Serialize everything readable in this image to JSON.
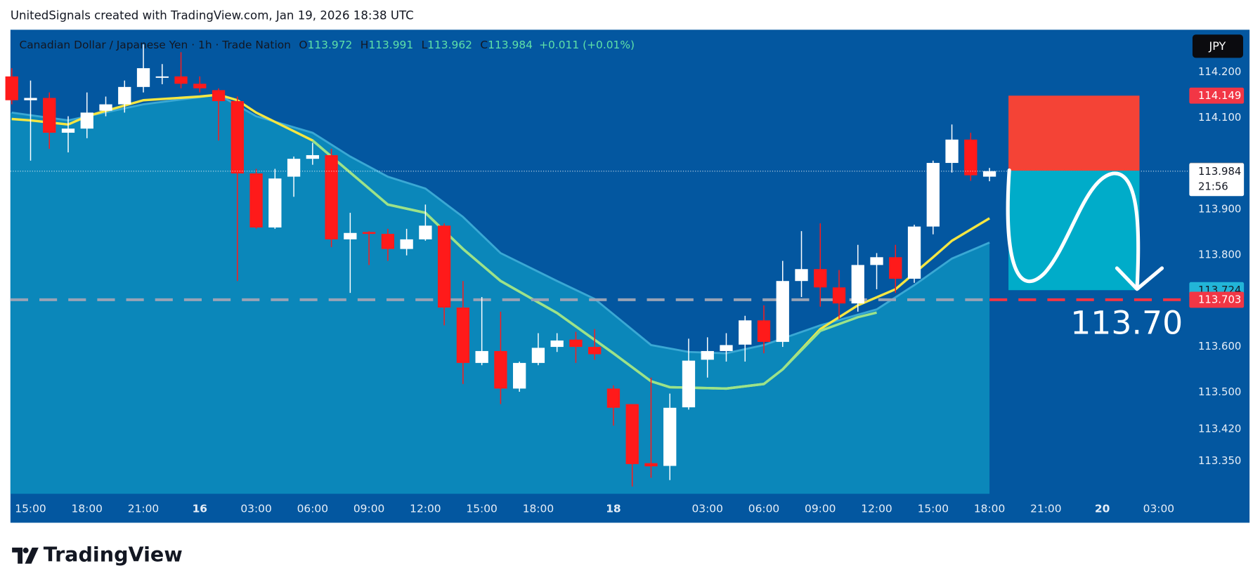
{
  "header": {
    "attribution": "UnitedSignals created with TradingView.com, Jan 19, 2026 18:38 UTC"
  },
  "brand": "TradingView",
  "chart_data": {
    "type": "candlestick",
    "symbol": "Canadian Dollar / Japanese Yen · 1h · Trade Nation",
    "ohlc_letters": [
      "O",
      "H",
      "L",
      "C"
    ],
    "change": "+0.011 (+0.01%)",
    "currency": "JPY",
    "countdown": "21:56",
    "up_color": "#ffffff",
    "down_color": "#ff1a1a",
    "x": [
      0,
      1,
      2,
      3,
      4,
      5,
      6,
      7,
      8,
      9,
      10,
      11,
      12,
      13,
      14,
      15,
      16,
      17,
      18,
      19,
      20,
      21,
      22,
      23,
      24,
      25,
      26,
      27,
      28,
      29,
      30,
      31,
      32,
      33,
      34,
      35,
      36,
      37,
      38,
      39,
      40,
      41,
      42,
      43,
      44,
      45,
      46,
      47,
      48,
      49,
      50,
      51,
      52
    ],
    "open": [
      114.191,
      114.139,
      114.144,
      114.068,
      114.077,
      114.116,
      114.13,
      114.168,
      114.188,
      114.191,
      114.175,
      114.161,
      114.137,
      113.979,
      113.861,
      113.972,
      114.011,
      114.019,
      113.835,
      113.851,
      113.847,
      113.814,
      113.835,
      113.865,
      113.686,
      113.565,
      113.591,
      113.509,
      113.565,
      113.6,
      113.616,
      113.6,
      113.509,
      113.475,
      113.346,
      113.34,
      113.468,
      113.572,
      113.591,
      113.605,
      113.658,
      113.611,
      113.744,
      113.77,
      113.73,
      113.695,
      113.779,
      113.796,
      113.749,
      113.863,
      114.002,
      114.053,
      113.972
    ],
    "high": [
      114.209,
      114.182,
      114.156,
      114.104,
      114.156,
      114.147,
      114.182,
      114.261,
      114.218,
      114.244,
      114.191,
      114.165,
      114.147,
      113.989,
      113.989,
      114.016,
      114.046,
      114.033,
      113.893,
      113.853,
      113.858,
      113.858,
      113.911,
      113.87,
      113.744,
      113.709,
      113.677,
      113.568,
      113.63,
      113.63,
      113.633,
      113.639,
      113.516,
      113.475,
      113.533,
      113.498,
      113.618,
      113.621,
      113.63,
      113.668,
      113.691,
      113.788,
      113.853,
      113.87,
      113.768,
      113.823,
      113.805,
      113.823,
      113.867,
      114.007,
      114.086,
      114.068,
      113.991
    ],
    "low": [
      114.13,
      114.007,
      114.033,
      114.025,
      114.056,
      114.104,
      114.112,
      114.156,
      114.174,
      114.165,
      114.156,
      114.051,
      113.744,
      113.858,
      113.858,
      113.928,
      113.998,
      113.818,
      113.718,
      113.779,
      113.788,
      113.8,
      113.832,
      113.647,
      113.519,
      113.56,
      113.475,
      113.502,
      113.56,
      113.589,
      113.565,
      113.572,
      113.428,
      113.295,
      113.314,
      113.309,
      113.463,
      113.533,
      113.568,
      113.568,
      113.586,
      113.6,
      113.709,
      113.688,
      113.66,
      113.677,
      113.726,
      113.718,
      113.74,
      113.846,
      113.981,
      113.963,
      113.962
    ],
    "close": [
      114.139,
      114.144,
      114.068,
      114.077,
      114.112,
      114.13,
      114.168,
      114.209,
      114.191,
      114.175,
      114.165,
      114.137,
      113.979,
      113.861,
      113.968,
      114.011,
      114.019,
      113.835,
      113.849,
      113.847,
      113.814,
      113.835,
      113.865,
      113.686,
      113.565,
      113.591,
      113.509,
      113.565,
      113.598,
      113.614,
      113.6,
      113.584,
      113.467,
      113.344,
      113.339,
      113.467,
      113.57,
      113.591,
      113.604,
      113.658,
      113.611,
      113.744,
      113.77,
      113.73,
      113.695,
      113.779,
      113.796,
      113.749,
      113.863,
      114.002,
      114.053,
      113.975,
      113.984
    ],
    "band": {
      "color": "#0b87ba",
      "edge": "#3aa8d4",
      "x": [
        0,
        3,
        7,
        11,
        13,
        16,
        18,
        20,
        22,
        24,
        26,
        29,
        31,
        34,
        36,
        38,
        40,
        43,
        46,
        48,
        50,
        52
      ],
      "values": [
        114.112,
        114.095,
        114.13,
        114.151,
        114.104,
        114.068,
        114.016,
        113.972,
        113.946,
        113.884,
        113.805,
        113.744,
        113.705,
        113.604,
        113.589,
        113.586,
        113.604,
        113.647,
        113.682,
        113.735,
        113.793,
        113.828
      ]
    },
    "overlays": [
      {
        "color": "#f5e642",
        "x": [
          0,
          1,
          3,
          4,
          7,
          10,
          11,
          12,
          13,
          16,
          17,
          18,
          20,
          22,
          24,
          26,
          29,
          32,
          34,
          35,
          38,
          40,
          41,
          43,
          45,
          47,
          49,
          50,
          52
        ],
        "values": [
          114.098,
          114.095,
          114.086,
          114.104,
          114.139,
          114.147,
          114.151,
          114.139,
          114.112,
          114.051,
          114.016,
          113.981,
          113.911,
          113.893,
          113.814,
          113.744,
          113.674,
          113.586,
          113.525,
          113.512,
          113.509,
          113.519,
          113.551,
          113.639,
          113.691,
          113.726,
          113.796,
          113.832,
          113.881
        ]
      },
      {
        "color": "#9be38a",
        "x": [
          16,
          17,
          18,
          20,
          22,
          24,
          26,
          29,
          32,
          34,
          35,
          38,
          40,
          41,
          43,
          45,
          46
        ],
        "values": [
          114.051,
          114.016,
          113.981,
          113.911,
          113.893,
          113.814,
          113.744,
          113.674,
          113.586,
          113.525,
          113.512,
          113.509,
          113.519,
          113.551,
          113.635,
          113.665,
          113.675
        ]
      }
    ],
    "position": {
      "stop": 114.149,
      "entry": 113.985,
      "target": 113.724,
      "stop_color": "#f44336",
      "target_color": "#00acc9"
    },
    "levels": [
      113.703
    ],
    "level_color": "#f23645",
    "target_text": "113.70",
    "xlim": [
      -0.07,
      62.54
    ],
    "ylim": [
      113.279,
      114.293
    ],
    "xticks": [
      {
        "value": 1,
        "label": "15:00"
      },
      {
        "value": 4,
        "label": "18:00"
      },
      {
        "value": 7,
        "label": "21:00"
      },
      {
        "value": 10,
        "label": "16"
      },
      {
        "value": 13,
        "label": "03:00"
      },
      {
        "value": 16,
        "label": "06:00"
      },
      {
        "value": 19,
        "label": "09:00"
      },
      {
        "value": 22,
        "label": "12:00"
      },
      {
        "value": 25,
        "label": "15:00"
      },
      {
        "value": 28,
        "label": "18:00"
      },
      {
        "value": 32,
        "label": "18"
      },
      {
        "value": 37,
        "label": "03:00"
      },
      {
        "value": 40,
        "label": "06:00"
      },
      {
        "value": 43,
        "label": "09:00"
      },
      {
        "value": 46,
        "label": "12:00"
      },
      {
        "value": 49,
        "label": "15:00"
      },
      {
        "value": 52,
        "label": "18:00"
      },
      {
        "value": 55,
        "label": "21:00"
      },
      {
        "value": 58,
        "label": "20"
      },
      {
        "value": 61,
        "label": "03:00"
      }
    ],
    "yticks": [
      {
        "value": 114.2,
        "label": "114.200"
      },
      {
        "value": 114.1,
        "label": "114.100"
      },
      {
        "value": 113.9,
        "label": "113.900"
      },
      {
        "value": 113.8,
        "label": "113.800"
      },
      {
        "value": 113.6,
        "label": "113.600"
      },
      {
        "value": 113.5,
        "label": "113.500"
      },
      {
        "value": 113.42,
        "label": "113.420"
      },
      {
        "value": 113.35,
        "label": "113.350"
      }
    ],
    "grid": false
  }
}
